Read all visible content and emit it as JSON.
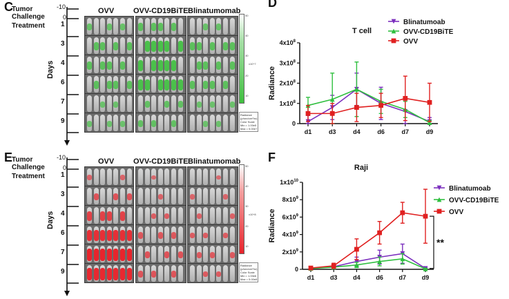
{
  "panels": {
    "C": {
      "letter": "C",
      "tumor_challenge": "Tumor\nChallenge",
      "treatment": "Treatment",
      "minus10": "-10",
      "zero": "0",
      "days_axis": "Days",
      "day_labels": [
        "1",
        "3",
        "4",
        "6",
        "7",
        "9"
      ],
      "groups": [
        "OVV",
        "OVV-CD19BiTE",
        "Blinatumomab"
      ],
      "signal_color": "#3fbf3f",
      "colorbar_ticks": [
        "50",
        "40",
        "30",
        "20",
        "10"
      ],
      "colorbar_unit": "x10^7",
      "colorbar_box": [
        "Radiance",
        "(p/sec/cm²/sr)",
        "Color Scale",
        "Min = 1.00e5",
        "Max = 5.00e7"
      ]
    },
    "E": {
      "letter": "E",
      "tumor_challenge": "Tumor\nChallenge",
      "treatment": "Treatment",
      "minus10": "-10",
      "zero": "0",
      "days_axis": "Days",
      "day_labels": [
        "1",
        "3",
        "4",
        "6",
        "7",
        "9"
      ],
      "groups": [
        "OVV",
        "OVV-CD19BiTE",
        "Blinatumomab"
      ],
      "signal_color": "#e8242c",
      "colorbar_ticks": [
        "50",
        "40",
        "30",
        "20",
        "10"
      ],
      "colorbar_unit": "x10^8",
      "colorbar_box": [
        "Radiance",
        "(p/sec/cm²/sr)",
        "Color Scale",
        "Min = 1.00e6",
        "Max = 5.00e8"
      ]
    }
  },
  "chart_data": [
    {
      "panel_letter": "D",
      "type": "line",
      "title": "T cell",
      "ylabel": "Radiance",
      "categories": [
        "d1",
        "d3",
        "d4",
        "d6",
        "d7",
        "d9"
      ],
      "ylim": [
        0,
        400000000
      ],
      "yticks": [
        {
          "value": 0,
          "label": "0"
        },
        {
          "value": 100000000,
          "label": "1x10^8"
        },
        {
          "value": 200000000,
          "label": "2x10^8"
        },
        {
          "value": 300000000,
          "label": "3x10^8"
        },
        {
          "value": 400000000,
          "label": "4x10^8"
        }
      ],
      "legend_placement": "top-right",
      "series": [
        {
          "name": "Blinatumoab",
          "color": "#7b2fbe",
          "marker": "triangle-down",
          "values": [
            10000000,
            80000000,
            170000000,
            100000000,
            60000000,
            10000000
          ],
          "errors": [
            30000000,
            60000000,
            80000000,
            80000000,
            60000000,
            20000000
          ]
        },
        {
          "name": "OVV-CD19BiTE",
          "color": "#2fbf3f",
          "marker": "triangle-up",
          "values": [
            90000000,
            120000000,
            170000000,
            110000000,
            70000000,
            5000000
          ],
          "errors": [
            40000000,
            130000000,
            135000000,
            60000000,
            40000000,
            10000000
          ]
        },
        {
          "name": "OVV",
          "color": "#e02020",
          "marker": "square",
          "values": [
            50000000,
            50000000,
            80000000,
            90000000,
            125000000,
            105000000
          ],
          "errors": [
            40000000,
            50000000,
            70000000,
            60000000,
            110000000,
            95000000
          ]
        }
      ]
    },
    {
      "panel_letter": "F",
      "type": "line",
      "title": "Raji",
      "ylabel": "Radiance",
      "categories": [
        "d1",
        "d3",
        "d4",
        "d6",
        "d7",
        "d9"
      ],
      "ylim": [
        0,
        10000000000
      ],
      "yticks": [
        {
          "value": 0,
          "label": "0"
        },
        {
          "value": 2000000000,
          "label": "2x10^9"
        },
        {
          "value": 4000000000,
          "label": "4x10^9"
        },
        {
          "value": 6000000000,
          "label": "6x10^9"
        },
        {
          "value": 8000000000,
          "label": "8x10^9"
        },
        {
          "value": 10000000000,
          "label": "1x10^10"
        }
      ],
      "legend_placement": "right",
      "annotation": "**",
      "series": [
        {
          "name": "Blinatumoab",
          "color": "#7b2fbe",
          "marker": "triangle-down",
          "values": [
            100000000,
            300000000,
            900000000,
            1400000000,
            1800000000,
            100000000
          ],
          "errors": [
            100000000,
            200000000,
            500000000,
            800000000,
            1100000000,
            100000000
          ]
        },
        {
          "name": "OVV-CD19BiTE",
          "color": "#2fbf3f",
          "marker": "triangle-up",
          "values": [
            100000000,
            250000000,
            500000000,
            900000000,
            1200000000,
            50000000
          ],
          "errors": [
            100000000,
            150000000,
            300000000,
            500000000,
            600000000,
            50000000
          ]
        },
        {
          "name": "OVV",
          "color": "#e02020",
          "marker": "square",
          "values": [
            150000000,
            400000000,
            2300000000,
            4200000000,
            6500000000,
            6100000000
          ],
          "errors": [
            100000000,
            300000000,
            1200000000,
            1300000000,
            1200000000,
            3100000000
          ]
        }
      ]
    }
  ]
}
